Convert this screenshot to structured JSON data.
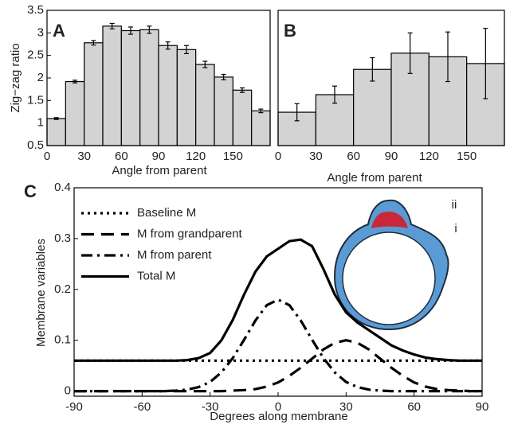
{
  "chart_data": [
    {
      "type": "histogram",
      "panel_label": "A",
      "ylabel": "Zig−zag ratio",
      "xlabel": "Angle from parent",
      "bins": [
        0,
        15,
        30,
        45,
        60,
        75,
        90,
        105,
        120,
        135,
        150,
        165,
        180
      ],
      "values": [
        1.1,
        1.92,
        2.78,
        3.15,
        3.05,
        3.07,
        2.72,
        2.63,
        2.3,
        2.02,
        1.73,
        1.27
      ],
      "errors": [
        0.02,
        0.03,
        0.05,
        0.06,
        0.08,
        0.08,
        0.08,
        0.09,
        0.07,
        0.06,
        0.05,
        0.04
      ],
      "color": "#d3d3d3",
      "xlim": [
        0,
        180
      ],
      "ylim": [
        0.5,
        3.5
      ],
      "xticks": [
        0,
        30,
        60,
        90,
        120,
        150
      ],
      "yticks": [
        0.5,
        1,
        1.5,
        2,
        2.5,
        3,
        3.5
      ]
    },
    {
      "type": "histogram",
      "panel_label": "B",
      "xlabel": "Angle from parent",
      "bins": [
        0,
        30,
        60,
        90,
        120,
        150,
        180
      ],
      "values": [
        1.24,
        1.63,
        2.19,
        2.55,
        2.47,
        2.32
      ],
      "errors": [
        0.19,
        0.19,
        0.26,
        0.45,
        0.55,
        0.78
      ],
      "color": "#d3d3d3",
      "xlim": [
        0,
        180
      ],
      "ylim": [
        0.5,
        3.5
      ],
      "xticks": [
        0,
        30,
        60,
        90,
        120,
        150
      ]
    },
    {
      "type": "line",
      "panel_label": "C",
      "ylabel": "Membrane variables",
      "xlabel": "Degrees along membrane",
      "annotations": [
        "ii",
        "i"
      ],
      "x": [
        -90,
        -85,
        -80,
        -75,
        -70,
        -65,
        -60,
        -55,
        -50,
        -45,
        -40,
        -35,
        -30,
        -25,
        -20,
        -15,
        -10,
        -5,
        0,
        5,
        10,
        15,
        20,
        25,
        30,
        35,
        40,
        45,
        50,
        55,
        60,
        65,
        70,
        75,
        80,
        85,
        90
      ],
      "series": [
        {
          "name": "Baseline M",
          "color": "#000000",
          "style": "dotted",
          "values": [
            0.06,
            0.06,
            0.06,
            0.06,
            0.06,
            0.06,
            0.06,
            0.06,
            0.06,
            0.06,
            0.06,
            0.06,
            0.06,
            0.06,
            0.06,
            0.06,
            0.06,
            0.06,
            0.06,
            0.06,
            0.06,
            0.06,
            0.06,
            0.06,
            0.06,
            0.06,
            0.06,
            0.06,
            0.06,
            0.06,
            0.06,
            0.06,
            0.06,
            0.06,
            0.06,
            0.06,
            0.06
          ]
        },
        {
          "name": "M from grandparent",
          "color": "#000000",
          "style": "dashed",
          "values": [
            0,
            0,
            0,
            0,
            0,
            0,
            0,
            0,
            0,
            0,
            0,
            0,
            0,
            0,
            0.001,
            0.002,
            0.004,
            0.009,
            0.017,
            0.03,
            0.046,
            0.064,
            0.082,
            0.095,
            0.1,
            0.095,
            0.082,
            0.064,
            0.046,
            0.03,
            0.017,
            0.009,
            0.004,
            0.002,
            0.001,
            0,
            0
          ]
        },
        {
          "name": "M from parent",
          "color": "#000000",
          "style": "dashdot",
          "values": [
            0,
            0,
            0,
            0,
            0,
            0,
            0,
            0,
            0,
            0.001,
            0.003,
            0.008,
            0.018,
            0.037,
            0.065,
            0.101,
            0.139,
            0.169,
            0.18,
            0.169,
            0.139,
            0.101,
            0.065,
            0.037,
            0.018,
            0.008,
            0.003,
            0.001,
            0,
            0,
            0,
            0,
            0,
            0,
            0,
            0,
            0
          ]
        },
        {
          "name": "Total M",
          "color": "#000000",
          "style": "solid",
          "values": [
            0.06,
            0.06,
            0.06,
            0.06,
            0.06,
            0.06,
            0.06,
            0.06,
            0.06,
            0.06,
            0.061,
            0.065,
            0.075,
            0.1,
            0.14,
            0.19,
            0.235,
            0.265,
            0.28,
            0.295,
            0.298,
            0.285,
            0.24,
            0.19,
            0.155,
            0.135,
            0.12,
            0.105,
            0.09,
            0.08,
            0.072,
            0.066,
            0.063,
            0.061,
            0.06,
            0.06,
            0.06
          ]
        }
      ],
      "xlim": [
        -90,
        90
      ],
      "ylim": [
        -0.01,
        0.4
      ],
      "xticks": [
        -90,
        -60,
        -30,
        0,
        30,
        60,
        90
      ],
      "yticks": [
        0,
        0.1,
        0.2,
        0.3,
        0.4
      ]
    }
  ]
}
